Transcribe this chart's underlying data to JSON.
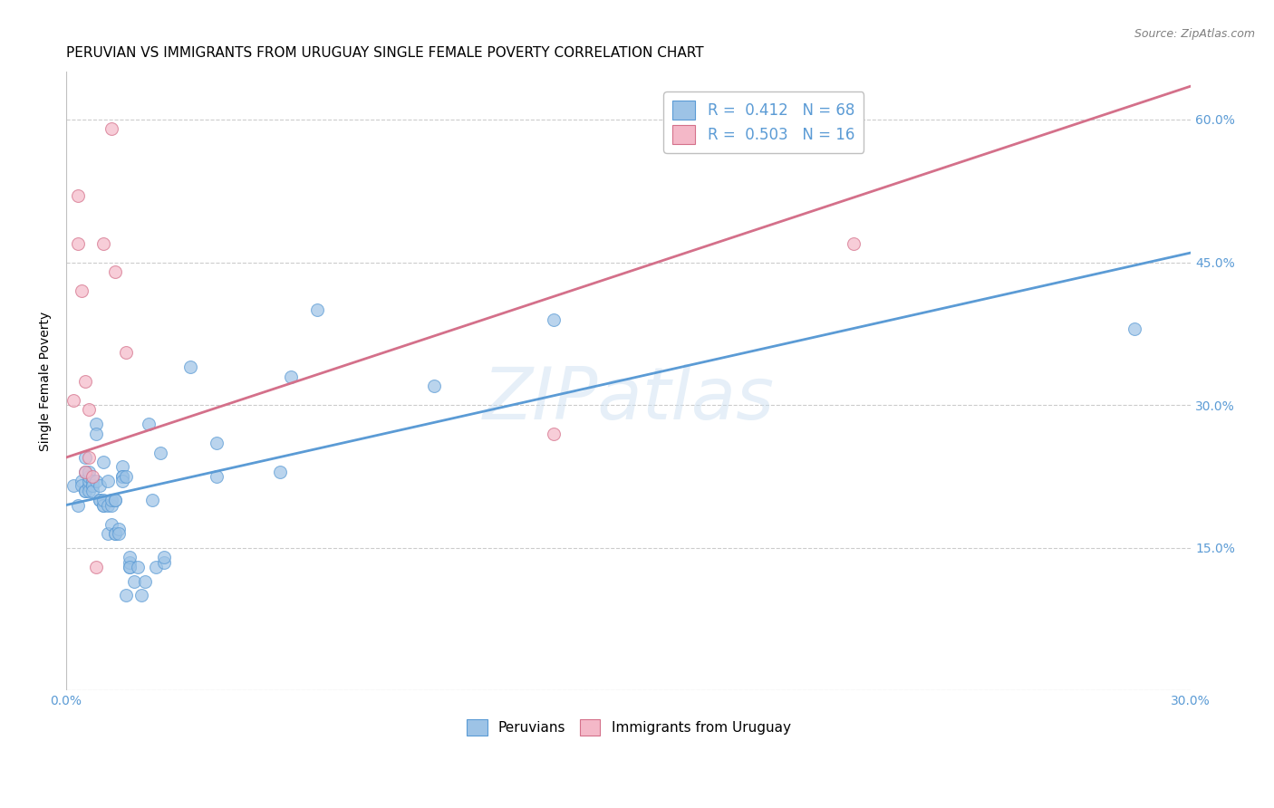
{
  "title": "PERUVIAN VS IMMIGRANTS FROM URUGUAY SINGLE FEMALE POVERTY CORRELATION CHART",
  "source": "Source: ZipAtlas.com",
  "ylabel": "Single Female Poverty",
  "xlim": [
    0.0,
    0.3
  ],
  "ylim": [
    0.0,
    0.65
  ],
  "xticks": [
    0.0,
    0.05,
    0.1,
    0.15,
    0.2,
    0.25,
    0.3
  ],
  "yticks": [
    0.0,
    0.15,
    0.3,
    0.45,
    0.6
  ],
  "ytick_labels_right": [
    "",
    "15.0%",
    "30.0%",
    "45.0%",
    "60.0%"
  ],
  "xtick_labels": [
    "0.0%",
    "",
    "",
    "",
    "",
    "",
    "30.0%"
  ],
  "axis_color": "#5b9bd5",
  "grid_color": "#cccccc",
  "watermark": "ZIPatlas",
  "legend_label_blue": "R =  0.412   N = 68",
  "legend_label_pink": "R =  0.503   N = 16",
  "blue_scatter": [
    [
      0.002,
      0.215
    ],
    [
      0.003,
      0.195
    ],
    [
      0.004,
      0.22
    ],
    [
      0.004,
      0.215
    ],
    [
      0.005,
      0.21
    ],
    [
      0.005,
      0.23
    ],
    [
      0.005,
      0.245
    ],
    [
      0.005,
      0.21
    ],
    [
      0.006,
      0.215
    ],
    [
      0.006,
      0.22
    ],
    [
      0.006,
      0.225
    ],
    [
      0.006,
      0.23
    ],
    [
      0.006,
      0.21
    ],
    [
      0.007,
      0.215
    ],
    [
      0.007,
      0.22
    ],
    [
      0.007,
      0.215
    ],
    [
      0.007,
      0.21
    ],
    [
      0.008,
      0.28
    ],
    [
      0.008,
      0.27
    ],
    [
      0.008,
      0.22
    ],
    [
      0.009,
      0.215
    ],
    [
      0.009,
      0.2
    ],
    [
      0.009,
      0.2
    ],
    [
      0.01,
      0.195
    ],
    [
      0.01,
      0.195
    ],
    [
      0.01,
      0.2
    ],
    [
      0.01,
      0.24
    ],
    [
      0.011,
      0.165
    ],
    [
      0.011,
      0.195
    ],
    [
      0.011,
      0.22
    ],
    [
      0.012,
      0.175
    ],
    [
      0.012,
      0.195
    ],
    [
      0.012,
      0.2
    ],
    [
      0.013,
      0.165
    ],
    [
      0.013,
      0.2
    ],
    [
      0.013,
      0.2
    ],
    [
      0.013,
      0.165
    ],
    [
      0.014,
      0.17
    ],
    [
      0.014,
      0.165
    ],
    [
      0.015,
      0.235
    ],
    [
      0.015,
      0.225
    ],
    [
      0.015,
      0.225
    ],
    [
      0.015,
      0.22
    ],
    [
      0.016,
      0.225
    ],
    [
      0.016,
      0.1
    ],
    [
      0.017,
      0.13
    ],
    [
      0.017,
      0.135
    ],
    [
      0.017,
      0.14
    ],
    [
      0.017,
      0.13
    ],
    [
      0.018,
      0.115
    ],
    [
      0.019,
      0.13
    ],
    [
      0.02,
      0.1
    ],
    [
      0.021,
      0.115
    ],
    [
      0.022,
      0.28
    ],
    [
      0.023,
      0.2
    ],
    [
      0.024,
      0.13
    ],
    [
      0.025,
      0.25
    ],
    [
      0.026,
      0.135
    ],
    [
      0.026,
      0.14
    ],
    [
      0.033,
      0.34
    ],
    [
      0.04,
      0.225
    ],
    [
      0.04,
      0.26
    ],
    [
      0.057,
      0.23
    ],
    [
      0.06,
      0.33
    ],
    [
      0.067,
      0.4
    ],
    [
      0.098,
      0.32
    ],
    [
      0.13,
      0.39
    ],
    [
      0.285,
      0.38
    ]
  ],
  "pink_scatter": [
    [
      0.002,
      0.305
    ],
    [
      0.003,
      0.52
    ],
    [
      0.003,
      0.47
    ],
    [
      0.004,
      0.42
    ],
    [
      0.005,
      0.325
    ],
    [
      0.005,
      0.23
    ],
    [
      0.006,
      0.295
    ],
    [
      0.006,
      0.245
    ],
    [
      0.007,
      0.225
    ],
    [
      0.008,
      0.13
    ],
    [
      0.01,
      0.47
    ],
    [
      0.012,
      0.59
    ],
    [
      0.013,
      0.44
    ],
    [
      0.016,
      0.355
    ],
    [
      0.21,
      0.47
    ],
    [
      0.13,
      0.27
    ]
  ],
  "blue_line": [
    [
      0.0,
      0.195
    ],
    [
      0.3,
      0.46
    ]
  ],
  "pink_line": [
    [
      0.0,
      0.245
    ],
    [
      0.3,
      0.635
    ]
  ],
  "blue_color": "#5b9bd5",
  "blue_scatter_color": "#9dc3e6",
  "pink_scatter_color": "#f4b8c8",
  "pink_line_color": "#d4708a",
  "title_fontsize": 11,
  "axis_label_fontsize": 10,
  "tick_fontsize": 10,
  "marker_size": 100
}
